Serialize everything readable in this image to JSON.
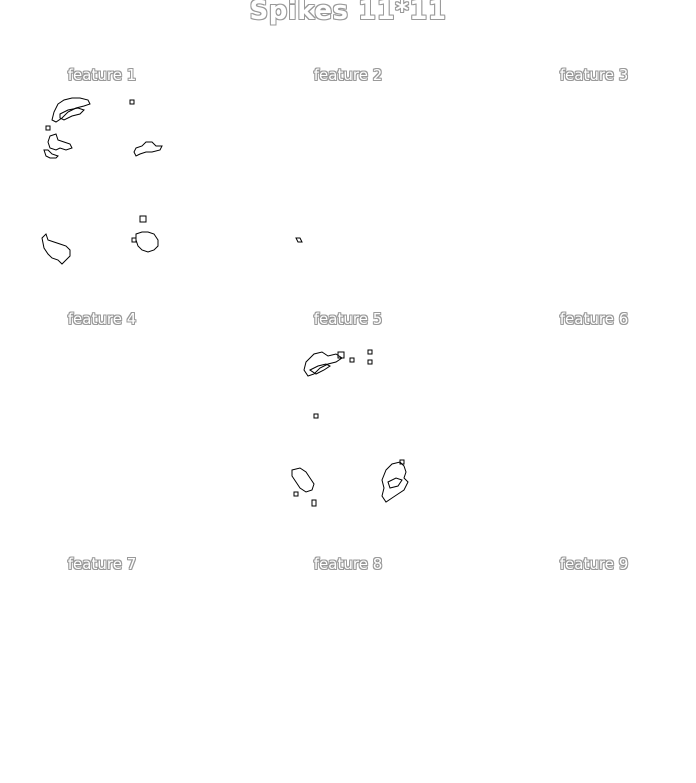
{
  "title": "Spikes 11*11",
  "chart_data": {
    "type": "heatmap",
    "title": "Spikes 11*11",
    "grid": false,
    "rows": 3,
    "cols": 3,
    "panels": [
      {
        "title": "feature 1"
      },
      {
        "title": "feature 2"
      },
      {
        "title": "feature 3"
      },
      {
        "title": "feature 4"
      },
      {
        "title": "feature 5"
      },
      {
        "title": "feature 6"
      },
      {
        "title": "feature 7"
      },
      {
        "title": "feature 8"
      },
      {
        "title": "feature 9"
      }
    ]
  }
}
